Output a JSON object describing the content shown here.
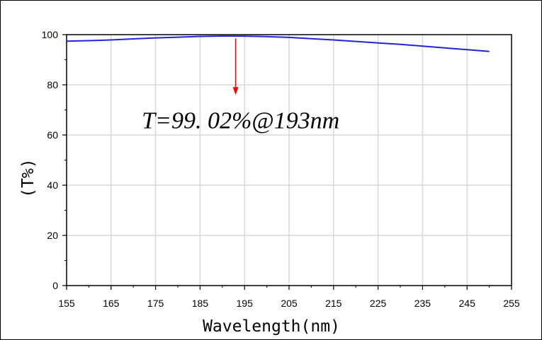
{
  "chart_data": {
    "type": "line",
    "title": "",
    "xlabel": "Wavelength(nm)",
    "ylabel": "(T%)",
    "xlim": [
      155,
      255
    ],
    "ylim": [
      0,
      100
    ],
    "x_ticks": [
      155,
      165,
      175,
      185,
      195,
      205,
      215,
      225,
      235,
      245,
      255
    ],
    "y_ticks": [
      0,
      20,
      40,
      60,
      80,
      100
    ],
    "grid": true,
    "series": [
      {
        "color": "#2222dd",
        "x": [
          155,
          160,
          165,
          170,
          175,
          180,
          185,
          190,
          195,
          200,
          205,
          210,
          215,
          220,
          225,
          230,
          235,
          240,
          245,
          250
        ],
        "y": [
          97.4,
          97.6,
          97.9,
          98.3,
          98.7,
          99.0,
          99.3,
          99.45,
          99.4,
          99.2,
          98.9,
          98.4,
          97.9,
          97.3,
          96.7,
          96.1,
          95.4,
          94.7,
          94.0,
          93.3
        ]
      }
    ],
    "annotation": {
      "text": "T=99. 02%@193nm",
      "arrow_x": 193,
      "arrow_from_y": 98.5,
      "arrow_to_y": 76,
      "arrow_color": "#ff0000",
      "text_x": 193,
      "text_y": 66
    }
  }
}
